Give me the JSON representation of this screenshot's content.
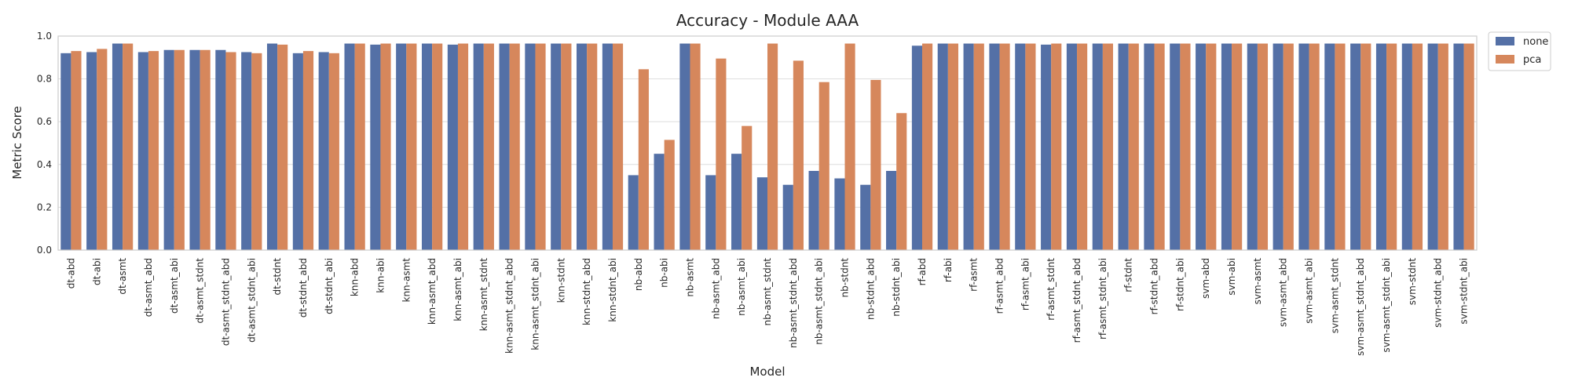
{
  "chart_data": {
    "type": "bar",
    "title": "Accuracy - Module AAA",
    "xlabel": "Model",
    "ylabel": "Metric Score",
    "ylim": [
      0,
      1.0
    ],
    "yticks": [
      "0.0",
      "0.2",
      "0.4",
      "0.6",
      "0.8",
      "1.0"
    ],
    "grid": true,
    "legend_position": "outside-top-right",
    "categories": [
      "dt-abd",
      "dt-abi",
      "dt-asmt",
      "dt-asmt_abd",
      "dt-asmt_abi",
      "dt-asmt_stdnt",
      "dt-asmt_stdnt_abd",
      "dt-asmt_stdnt_abi",
      "dt-stdnt",
      "dt-stdnt_abd",
      "dt-stdnt_abi",
      "knn-abd",
      "knn-abi",
      "knn-asmt",
      "knn-asmt_abd",
      "knn-asmt_abi",
      "knn-asmt_stdnt",
      "knn-asmt_stdnt_abd",
      "knn-asmt_stdnt_abi",
      "knn-stdnt",
      "knn-stdnt_abd",
      "knn-stdnt_abi",
      "nb-abd",
      "nb-abi",
      "nb-asmt",
      "nb-asmt_abd",
      "nb-asmt_abi",
      "nb-asmt_stdnt",
      "nb-asmt_stdnt_abd",
      "nb-asmt_stdnt_abi",
      "nb-stdnt",
      "nb-stdnt_abd",
      "nb-stdnt_abi",
      "rf-abd",
      "rf-abi",
      "rf-asmt",
      "rf-asmt_abd",
      "rf-asmt_abi",
      "rf-asmt_stdnt",
      "rf-asmt_stdnt_abd",
      "rf-asmt_stdnt_abi",
      "rf-stdnt",
      "rf-stdnt_abd",
      "rf-stdnt_abi",
      "svm-abd",
      "svm-abi",
      "svm-asmt",
      "svm-asmt_abd",
      "svm-asmt_abi",
      "svm-asmt_stdnt",
      "svm-asmt_stdnt_abd",
      "svm-asmt_stdnt_abi",
      "svm-stdnt",
      "svm-stdnt_abd",
      "svm-stdnt_abi"
    ],
    "series": [
      {
        "name": "none",
        "color": "#5470a6",
        "values": [
          0.92,
          0.925,
          0.965,
          0.925,
          0.935,
          0.935,
          0.935,
          0.925,
          0.965,
          0.92,
          0.925,
          0.965,
          0.96,
          0.965,
          0.965,
          0.96,
          0.965,
          0.965,
          0.965,
          0.965,
          0.965,
          0.965,
          0.35,
          0.45,
          0.965,
          0.35,
          0.45,
          0.34,
          0.305,
          0.37,
          0.335,
          0.305,
          0.37,
          0.955,
          0.965,
          0.965,
          0.965,
          0.965,
          0.96,
          0.965,
          0.965,
          0.965,
          0.965,
          0.965,
          0.965,
          0.965,
          0.965,
          0.965,
          0.965,
          0.965,
          0.965,
          0.965,
          0.965,
          0.965,
          0.965
        ]
      },
      {
        "name": "pca",
        "color": "#d6875c",
        "values": [
          0.93,
          0.94,
          0.965,
          0.93,
          0.935,
          0.935,
          0.925,
          0.92,
          0.96,
          0.93,
          0.92,
          0.965,
          0.965,
          0.965,
          0.965,
          0.965,
          0.965,
          0.965,
          0.965,
          0.965,
          0.965,
          0.965,
          0.845,
          0.515,
          0.965,
          0.895,
          0.58,
          0.965,
          0.885,
          0.785,
          0.965,
          0.795,
          0.64,
          0.965,
          0.965,
          0.965,
          0.965,
          0.965,
          0.965,
          0.965,
          0.965,
          0.965,
          0.965,
          0.965,
          0.965,
          0.965,
          0.965,
          0.965,
          0.965,
          0.965,
          0.965,
          0.965,
          0.965,
          0.965,
          0.965
        ]
      }
    ]
  }
}
